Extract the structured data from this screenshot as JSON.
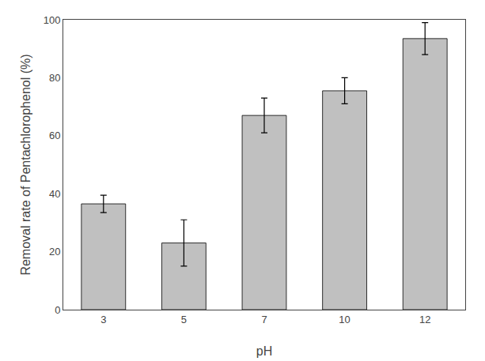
{
  "chart_data": {
    "type": "bar",
    "categories": [
      "3",
      "5",
      "7",
      "10",
      "12"
    ],
    "values": [
      36.5,
      23.0,
      67.0,
      75.5,
      93.5
    ],
    "errors": [
      3.0,
      8.0,
      6.0,
      4.5,
      5.5
    ],
    "color": "#c0c0c0",
    "xlabel": "pH",
    "ylabel": "Removal rate of Pentachlorophenol (%)",
    "ylim": [
      0,
      100
    ],
    "yticks": [
      0,
      20,
      40,
      60,
      80,
      100
    ],
    "grid": false
  }
}
